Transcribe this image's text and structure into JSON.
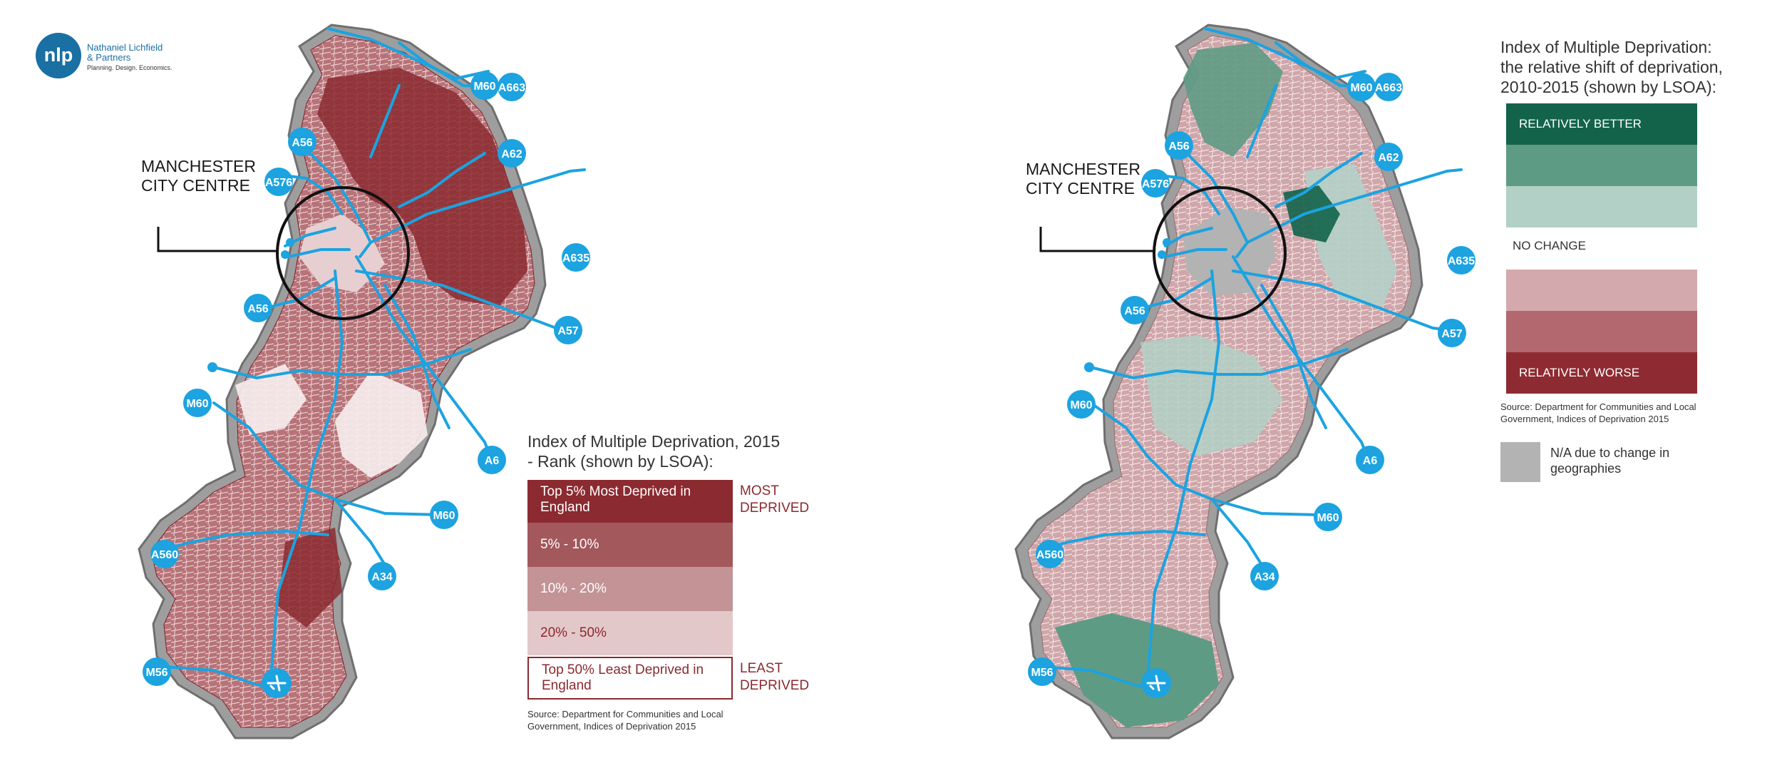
{
  "logo": {
    "mark": "nlp",
    "name_line1": "Nathaniel Lichfield",
    "name_line2": "& Partners",
    "tagline": "Planning. Design. Economics."
  },
  "city_centre_label": {
    "line1": "MANCHESTER",
    "line2": "CITY CENTRE"
  },
  "left_map": {
    "legend": {
      "title_line1": "Index of Multiple Deprivation, 2015",
      "title_line2": "- Rank (shown by LSOA):",
      "classes": [
        {
          "label": "Top 5% Most Deprived in England",
          "color": "#8b2a30"
        },
        {
          "label": "5% - 10%",
          "color": "#a3585c"
        },
        {
          "label": "10% - 20%",
          "color": "#c39396"
        },
        {
          "label": "20% - 50%",
          "color": "#e3c8ca"
        },
        {
          "label": "Top 50% Least Deprived in England",
          "color": "#ffffff"
        }
      ],
      "most_label_line1": "MOST",
      "most_label_line2": "DEPRIVED",
      "least_label_line1": "LEAST",
      "least_label_line2": "DEPRIVED",
      "source_line1": "Source: Department for Communities and Local",
      "source_line2": "Government, Indices of Deprivation 2015"
    },
    "roads": [
      "M60",
      "A663",
      "A56",
      "A62",
      "A576",
      "A635",
      "A56",
      "A57",
      "M60",
      "A6",
      "M60",
      "A560",
      "A34",
      "M56"
    ]
  },
  "right_map": {
    "legend": {
      "title_line1": "Index of Multiple Deprivation:",
      "title_line2": "the relative shift of deprivation,",
      "title_line3": "2010-2015 (shown by LSOA):",
      "better_label": "RELATIVELY BETTER",
      "no_change_label": "NO CHANGE",
      "worse_label": "RELATIVELY WORSE",
      "colors": {
        "better3": "#12634a",
        "better2": "#5e9b84",
        "better1": "#b2d0c6",
        "worse1": "#d4a9ad",
        "worse2": "#b2686e",
        "worse3": "#8e2b32",
        "na": "#b3b3b3"
      },
      "source_line1": "Source: Department for Communities and Local",
      "source_line2": "Government, Indices of Deprivation 2015",
      "na_line1": "N/A due to change in",
      "na_line2": "geographies"
    },
    "roads": [
      "M60",
      "A663",
      "A56",
      "A62",
      "A576",
      "A635",
      "A56",
      "A57",
      "M60",
      "A6",
      "M60",
      "A560",
      "A34",
      "M56"
    ]
  },
  "colors": {
    "road_blue": "#1ca3e0",
    "boundary_grey": "#9e9e9e"
  }
}
